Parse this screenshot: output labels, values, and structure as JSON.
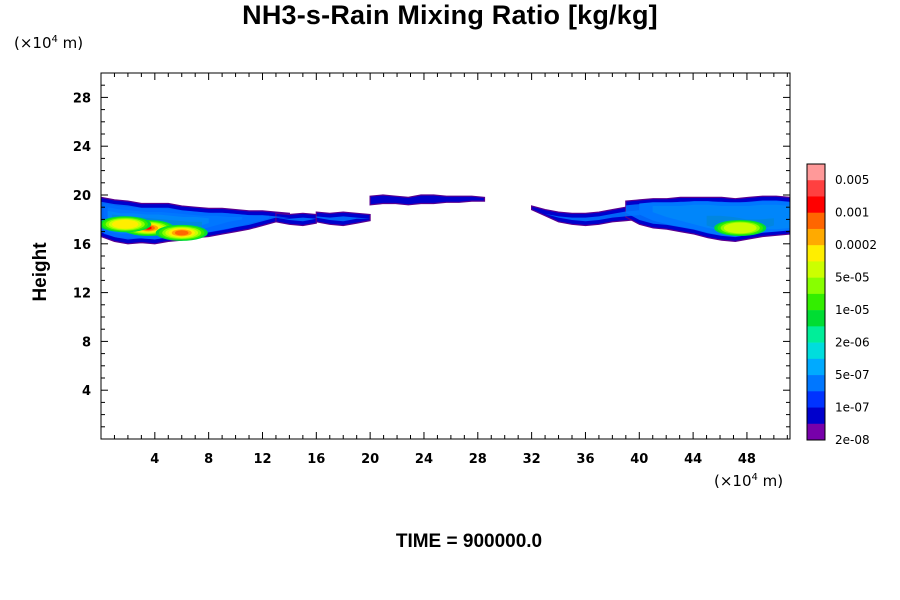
{
  "chart_data": {
    "type": "heatmap",
    "title": "NH3-s-Rain Mixing Ratio [kg/kg]",
    "ylabel": "Height",
    "x_unit": "(×10⁴ m)",
    "y_unit": "(×10⁴ m)",
    "time_label": "TIME = 900000.0",
    "xlim": [
      0,
      51.2
    ],
    "ylim": [
      0,
      30
    ],
    "x_ticks": [
      4,
      8,
      12,
      16,
      20,
      24,
      28,
      32,
      36,
      40,
      44,
      48
    ],
    "y_ticks": [
      4,
      8,
      12,
      16,
      20,
      24,
      28
    ],
    "colorbar": {
      "labels": [
        "0.005",
        "0.001",
        "0.0002",
        "5e-05",
        "1e-05",
        "2e-06",
        "5e-07",
        "1e-07",
        "2e-08"
      ],
      "colors": [
        "#ff9999",
        "#ff4040",
        "#ff0000",
        "#ff6600",
        "#ffaa00",
        "#ffee00",
        "#ccff00",
        "#88ff00",
        "#33ee00",
        "#00dd33",
        "#00ee99",
        "#00dddd",
        "#00aaff",
        "#0077ff",
        "#0033ff",
        "#0000cc",
        "#7700aa"
      ]
    },
    "regions": [
      {
        "x": [
          0.0,
          14.0
        ],
        "y_bottom": [
          16.6,
          16.2,
          16.0,
          16.1,
          16.0,
          16.2,
          16.3,
          16.5,
          16.6,
          16.8,
          17.0,
          17.2,
          17.5,
          17.8,
          18.2
        ],
        "y_top": [
          19.8,
          19.6,
          19.5,
          19.3,
          19.3,
          19.3,
          19.1,
          19.0,
          18.9,
          18.9,
          18.8,
          18.7,
          18.7,
          18.6,
          18.5
        ],
        "level": 1
      },
      {
        "x": [
          0.2,
          12.5
        ],
        "y_bottom": [
          16.8,
          16.5,
          16.5,
          16.4,
          16.4,
          16.6,
          16.7,
          16.8,
          17.0,
          17.2,
          17.5,
          17.8,
          18.1
        ],
        "y_top": [
          19.3,
          19.1,
          19.0,
          18.9,
          18.9,
          18.8,
          18.7,
          18.6,
          18.5,
          18.5,
          18.4,
          18.3,
          18.3
        ],
        "level": 2
      },
      {
        "x": [
          0.5,
          10.5
        ],
        "y_bottom": [
          17.0,
          16.8,
          16.8,
          16.7,
          16.8,
          16.9,
          17.0,
          17.2,
          17.5,
          17.8,
          18.0
        ],
        "y_top": [
          19.0,
          18.8,
          18.7,
          18.6,
          18.6,
          18.5,
          18.4,
          18.3,
          18.3,
          18.2,
          18.2
        ],
        "level": 3
      },
      {
        "x": [
          0.5,
          8.0
        ],
        "y_bottom": [
          17.1,
          16.9,
          16.9,
          16.8,
          16.9,
          17.0,
          17.2,
          17.4,
          17.7
        ],
        "y_top": [
          18.7,
          18.5,
          18.5,
          18.4,
          18.4,
          18.3,
          18.2,
          18.2,
          18.1
        ],
        "level": 5
      },
      {
        "x": [
          0.8,
          7.5
        ],
        "y_bottom": [
          17.2,
          17.0,
          17.0,
          16.9,
          16.9,
          16.9,
          17.0,
          17.3
        ],
        "y_top": [
          18.4,
          18.3,
          18.2,
          18.1,
          18.0,
          17.9,
          17.8,
          17.8
        ],
        "level": 7
      },
      {
        "x": [
          13.0,
          16.0
        ],
        "y_bottom": [
          17.8,
          17.6,
          17.5,
          17.7
        ],
        "y_top": [
          18.5,
          18.4,
          18.5,
          18.4
        ],
        "level": 1
      },
      {
        "x": [
          16.0,
          20.0
        ],
        "y_bottom": [
          17.8,
          17.6,
          17.5,
          17.7,
          17.9
        ],
        "y_top": [
          18.6,
          18.5,
          18.6,
          18.5,
          18.4
        ],
        "level": 1
      },
      {
        "x": [
          20.0,
          28.5
        ],
        "y_bottom": [
          19.2,
          19.3,
          19.3,
          19.2,
          19.3,
          19.3,
          19.4,
          19.4,
          19.5,
          19.5
        ],
        "y_top": [
          19.9,
          20.0,
          19.9,
          19.8,
          20.0,
          20.0,
          19.9,
          19.9,
          19.9,
          19.8
        ],
        "level": 1
      },
      {
        "x": [
          32.0,
          40.0
        ],
        "y_bottom": [
          18.8,
          18.3,
          17.8,
          17.6,
          17.5,
          17.6,
          17.8,
          17.9,
          18.0
        ],
        "y_top": [
          19.1,
          18.8,
          18.6,
          18.5,
          18.5,
          18.6,
          18.8,
          19.0,
          19.1
        ],
        "level": 1
      },
      {
        "x": [
          39.0,
          51.2
        ],
        "y_bottom": [
          18.2,
          17.6,
          17.3,
          17.2,
          17.0,
          16.8,
          16.5,
          16.3,
          16.2,
          16.4,
          16.6,
          16.7,
          16.8
        ],
        "y_top": [
          19.5,
          19.6,
          19.7,
          19.7,
          19.8,
          19.8,
          19.8,
          19.8,
          19.7,
          19.8,
          19.9,
          19.9,
          19.8
        ],
        "level": 1
      },
      {
        "x": [
          40.0,
          51.2
        ],
        "y_bottom": [
          18.4,
          17.9,
          17.6,
          17.4,
          17.2,
          16.9,
          16.7,
          16.6,
          16.7,
          16.9,
          17.0,
          17.1
        ],
        "y_top": [
          19.3,
          19.4,
          19.4,
          19.4,
          19.5,
          19.5,
          19.4,
          19.4,
          19.4,
          19.5,
          19.5,
          19.4
        ],
        "level": 3
      },
      {
        "x": [
          41.0,
          51.2
        ],
        "y_bottom": [
          18.6,
          18.2,
          17.9,
          17.6,
          17.3,
          17.1,
          17.0,
          17.0,
          17.2,
          17.2,
          17.3
        ],
        "y_top": [
          19.1,
          19.1,
          19.1,
          19.2,
          19.2,
          19.1,
          19.1,
          19.1,
          19.2,
          19.2,
          19.1
        ],
        "level": 5
      },
      {
        "x": [
          45.0,
          50.0
        ],
        "y_bottom": [
          17.5,
          17.2,
          17.1,
          17.0,
          17.2,
          17.5
        ],
        "y_top": [
          18.3,
          18.3,
          18.2,
          18.0,
          18.0,
          18.1
        ],
        "level": 7
      }
    ],
    "peaks": [
      {
        "x": 3.5,
        "y": 17.3,
        "level": 14
      },
      {
        "x": 6.0,
        "y": 16.9,
        "level": 13
      },
      {
        "x": 1.8,
        "y": 17.6,
        "level": 11
      },
      {
        "x": 47.5,
        "y": 17.3,
        "level": 10
      }
    ]
  }
}
